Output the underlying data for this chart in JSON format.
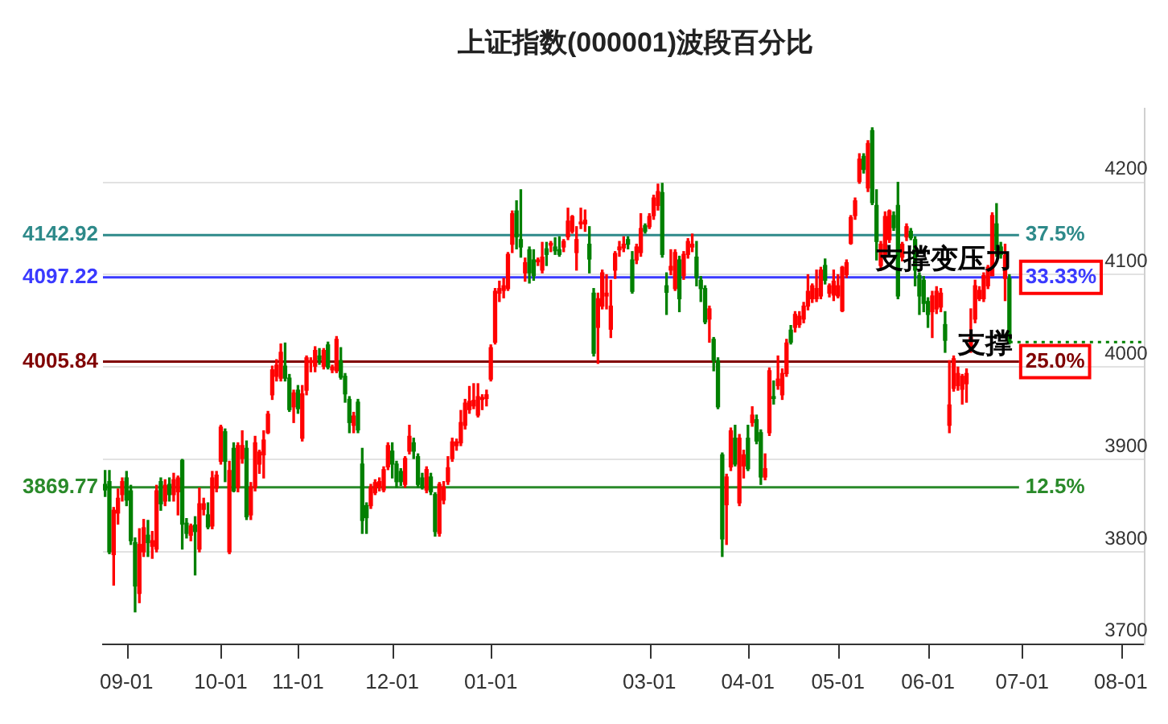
{
  "chart_data": {
    "type": "candlestick",
    "title": "上证指数(000001)波段百分比",
    "categories": [
      null,
      null,
      null,
      null,
      null,
      "09-01",
      null,
      null,
      null,
      null,
      null,
      null,
      null,
      null,
      null,
      null,
      null,
      null,
      null,
      null,
      null,
      null,
      null,
      null,
      null,
      null,
      null,
      "10-01",
      null,
      null,
      null,
      null,
      null,
      null,
      null,
      null,
      null,
      null,
      null,
      null,
      null,
      null,
      null,
      null,
      null,
      "11-01",
      null,
      null,
      null,
      null,
      null,
      null,
      null,
      null,
      null,
      null,
      null,
      null,
      null,
      null,
      null,
      null,
      null,
      null,
      null,
      null,
      null,
      "12-01",
      null,
      null,
      null,
      null,
      null,
      null,
      null,
      null,
      null,
      null,
      null,
      null,
      null,
      null,
      null,
      null,
      null,
      null,
      null,
      null,
      null,
      null,
      "01-01",
      null,
      null,
      null,
      null,
      null,
      null,
      null,
      null,
      null,
      null,
      null,
      null,
      null,
      null,
      null,
      null,
      null,
      null,
      null,
      null,
      null,
      null,
      null,
      null,
      null,
      null,
      null,
      null,
      null,
      null,
      null,
      null,
      null,
      null,
      null,
      null,
      "03-01",
      null,
      null,
      null,
      null,
      null,
      null,
      null,
      null,
      null,
      null,
      null,
      null,
      null,
      null,
      null,
      null,
      null,
      null,
      null,
      null,
      null,
      null,
      "04-01",
      null,
      null,
      null,
      null,
      null,
      null,
      null,
      null,
      null,
      null,
      null,
      null,
      null,
      null,
      null,
      null,
      null,
      null,
      null,
      null,
      "05-01",
      null,
      null,
      null,
      null,
      null,
      null,
      null,
      null,
      null,
      null,
      null,
      null,
      null,
      null,
      null,
      null,
      null,
      null,
      null,
      null,
      "06-01",
      null,
      null,
      null,
      null,
      null,
      null,
      null,
      null,
      null,
      null,
      null,
      null,
      null,
      null,
      null,
      null,
      null,
      null,
      null,
      null,
      null,
      "07-01",
      null,
      null,
      null,
      null,
      null,
      null,
      null,
      null,
      null,
      null,
      null,
      null,
      null,
      null,
      null,
      null,
      null,
      null,
      null,
      null,
      null,
      null,
      "08-01",
      null,
      null,
      null,
      null,
      null
    ],
    "ohlc": [
      [
        3873,
        3888,
        3860,
        3867
      ],
      [
        3876,
        3888,
        3798,
        3800
      ],
      [
        3797,
        3848,
        3764,
        3845
      ],
      [
        3842,
        3868,
        3830,
        3858
      ],
      [
        3862,
        3880,
        3855,
        3876
      ],
      [
        3880,
        3887,
        3850,
        3856
      ],
      [
        3866,
        3872,
        3808,
        3812
      ],
      [
        3810,
        3815,
        3735,
        3763
      ],
      [
        3755,
        3825,
        3745,
        3808
      ],
      [
        3800,
        3835,
        3795,
        3826
      ],
      [
        3818,
        3834,
        3795,
        3810
      ],
      [
        3806,
        3822,
        3793,
        3812
      ],
      [
        3803,
        3872,
        3800,
        3866
      ],
      [
        3876,
        3880,
        3845,
        3852
      ],
      [
        3855,
        3878,
        3850,
        3872
      ],
      [
        3873,
        3880,
        3855,
        3862
      ],
      [
        3862,
        3885,
        3855,
        3878
      ],
      [
        3865,
        3882,
        3840,
        3880
      ],
      [
        3899,
        3900,
        3803,
        3830
      ],
      [
        3831,
        3836,
        3815,
        3820
      ],
      [
        3818,
        3830,
        3812,
        3828
      ],
      [
        3829,
        3838,
        3775,
        3822
      ],
      [
        3803,
        3869,
        3800,
        3852
      ],
      [
        3846,
        3858,
        3840,
        3852
      ],
      [
        3840,
        3853,
        3825,
        3827
      ],
      [
        3828,
        3887,
        3825,
        3880
      ],
      [
        3869,
        3887,
        3865,
        3883
      ],
      [
        3898,
        3937,
        3895,
        3935
      ],
      [
        3930,
        3933,
        3876,
        3898
      ],
      [
        3800,
        3898,
        3798,
        3888
      ],
      [
        3912,
        3918,
        3865,
        3866
      ],
      [
        3870,
        3918,
        3865,
        3915
      ],
      [
        3901,
        3931,
        3896,
        3915
      ],
      [
        3912,
        3920,
        3835,
        3838
      ],
      [
        3840,
        3875,
        3835,
        3870
      ],
      [
        3870,
        3925,
        3866,
        3918
      ],
      [
        3895,
        3910,
        3885,
        3908
      ],
      [
        3905,
        3931,
        3880,
        3921
      ],
      [
        3929,
        3952,
        3928,
        3949
      ],
      [
        3970,
        4001,
        3965,
        3997
      ],
      [
        3990,
        4008,
        3985,
        4002
      ],
      [
        3988,
        4025,
        3985,
        4016
      ],
      [
        4001,
        4026,
        3985,
        3988
      ],
      [
        3988,
        3992,
        3952,
        3954
      ],
      [
        3957,
        3975,
        3940,
        3972
      ],
      [
        3975,
        3980,
        3950,
        3955
      ],
      [
        3923,
        3980,
        3920,
        3971
      ],
      [
        3975,
        4012,
        3970,
        4010
      ],
      [
        4005,
        4010,
        3995,
        4007
      ],
      [
        4001,
        4022,
        3995,
        4018
      ],
      [
        4012,
        4020,
        4003,
        4008
      ],
      [
        4001,
        4020,
        3998,
        4018
      ],
      [
        4024,
        4027,
        3998,
        4000
      ],
      [
        3997,
        4002,
        3994,
        4000
      ],
      [
        3996,
        4033,
        3994,
        4030
      ],
      [
        4007,
        4021,
        3987,
        3989
      ],
      [
        3990,
        3993,
        3962,
        3971
      ],
      [
        3965,
        3968,
        3929,
        3940
      ],
      [
        3937,
        3951,
        3929,
        3947
      ],
      [
        3962,
        3965,
        3929,
        3932
      ],
      [
        3895,
        3912,
        3820,
        3834
      ],
      [
        3850,
        3853,
        3820,
        3837
      ],
      [
        3850,
        3873,
        3847,
        3870
      ],
      [
        3864,
        3878,
        3862,
        3875
      ],
      [
        3870,
        3880,
        3866,
        3876
      ],
      [
        3867,
        3892,
        3865,
        3889
      ],
      [
        3892,
        3918,
        3889,
        3915
      ],
      [
        3909,
        3918,
        3880,
        3895
      ],
      [
        3895,
        3898,
        3870,
        3876
      ],
      [
        3887,
        3890,
        3872,
        3876
      ],
      [
        3873,
        3903,
        3870,
        3901
      ],
      [
        3909,
        3937,
        3906,
        3925
      ],
      [
        3918,
        3923,
        3901,
        3909
      ],
      [
        3903,
        3906,
        3870,
        3873
      ],
      [
        3880,
        3885,
        3868,
        3870
      ],
      [
        3867,
        3892,
        3864,
        3889
      ],
      [
        3881,
        3885,
        3862,
        3865
      ],
      [
        3862,
        3864,
        3817,
        3822
      ],
      [
        3820,
        3875,
        3817,
        3873
      ],
      [
        3856,
        3876,
        3852,
        3870
      ],
      [
        3876,
        3903,
        3873,
        3891
      ],
      [
        3901,
        3923,
        3898,
        3919
      ],
      [
        3915,
        3922,
        3910,
        3919
      ],
      [
        3918,
        3953,
        3915,
        3940
      ],
      [
        3937,
        3965,
        3933,
        3961
      ],
      [
        3954,
        3979,
        3950,
        3963
      ],
      [
        3958,
        3982,
        3955,
        3964
      ],
      [
        3948,
        3982,
        3946,
        3968
      ],
      [
        3965,
        3970,
        3954,
        3967
      ],
      [
        3966,
        3975,
        3958,
        3970
      ],
      [
        3987,
        4024,
        3985,
        4021
      ],
      [
        4027,
        4085,
        4025,
        4082
      ],
      [
        4080,
        4093,
        4071,
        4085
      ],
      [
        4083,
        4096,
        4075,
        4088
      ],
      [
        4085,
        4124,
        4083,
        4122
      ],
      [
        4133,
        4169,
        4124,
        4166
      ],
      [
        4169,
        4180,
        4128,
        4141
      ],
      [
        4138,
        4192,
        4119,
        4130
      ],
      [
        4102,
        4118,
        4093,
        4113
      ],
      [
        4127,
        4130,
        4091,
        4102
      ],
      [
        4116,
        4127,
        4094,
        4099
      ],
      [
        4114,
        4118,
        4110,
        4116
      ],
      [
        4105,
        4135,
        4102,
        4119
      ],
      [
        4128,
        4135,
        4110,
        4122
      ],
      [
        4132,
        4136,
        4125,
        4134
      ],
      [
        4130,
        4140,
        4122,
        4126
      ],
      [
        4127,
        4141,
        4120,
        4122
      ],
      [
        4130,
        4138,
        4125,
        4136
      ],
      [
        4141,
        4172,
        4138,
        4158
      ],
      [
        4147,
        4164,
        4145,
        4163
      ],
      [
        4124,
        4152,
        4105,
        4138
      ],
      [
        4155,
        4172,
        4150,
        4157
      ],
      [
        4155,
        4170,
        4147,
        4159
      ],
      [
        4133,
        4152,
        4102,
        4117
      ],
      [
        4080,
        4085,
        4012,
        4015
      ],
      [
        4043,
        4080,
        4004,
        4074
      ],
      [
        4066,
        4105,
        4063,
        4102
      ],
      [
        4077,
        4100,
        4063,
        4080
      ],
      [
        4041,
        4094,
        4032,
        4066
      ],
      [
        4105,
        4125,
        4096,
        4123
      ],
      [
        4127,
        4136,
        4120,
        4130
      ],
      [
        4129,
        4141,
        4125,
        4133
      ],
      [
        4138,
        4141,
        4128,
        4133
      ],
      [
        4116,
        4125,
        4080,
        4082
      ],
      [
        4116,
        4133,
        4112,
        4130
      ],
      [
        4124,
        4166,
        4120,
        4150
      ],
      [
        4153,
        4155,
        4145,
        4147
      ],
      [
        4152,
        4166,
        4150,
        4163
      ],
      [
        4164,
        4186,
        4160,
        4183
      ],
      [
        4175,
        4198,
        4170,
        4190
      ],
      [
        4189,
        4199,
        4119,
        4122
      ],
      [
        4088,
        4102,
        4057,
        4081
      ],
      [
        4105,
        4127,
        4100,
        4109
      ],
      [
        4085,
        4127,
        4083,
        4124
      ],
      [
        4116,
        4120,
        4060,
        4074
      ],
      [
        4099,
        4125,
        4095,
        4122
      ],
      [
        4122,
        4139,
        4118,
        4136
      ],
      [
        4130,
        4144,
        4125,
        4133
      ],
      [
        4119,
        4136,
        4088,
        4097
      ],
      [
        4094,
        4098,
        4071,
        4085
      ],
      [
        4085,
        4088,
        4047,
        4049
      ],
      [
        4052,
        4066,
        4027,
        4063
      ],
      [
        4030,
        4032,
        3996,
        4007
      ],
      [
        4007,
        4010,
        3955,
        3957
      ],
      [
        3905,
        3907,
        3795,
        3814
      ],
      [
        3851,
        3884,
        3808,
        3881
      ],
      [
        3892,
        3934,
        3888,
        3931
      ],
      [
        3923,
        3937,
        3893,
        3895
      ],
      [
        3853,
        3927,
        3850,
        3923
      ],
      [
        3893,
        3910,
        3880,
        3905
      ],
      [
        3923,
        3937,
        3888,
        3890
      ],
      [
        3940,
        3957,
        3936,
        3948
      ],
      [
        3943,
        3948,
        3917,
        3920
      ],
      [
        3929,
        3932,
        3873,
        3881
      ],
      [
        3881,
        3906,
        3878,
        3890
      ],
      [
        3929,
        3999,
        3926,
        3996
      ],
      [
        3968,
        3985,
        3960,
        3966
      ],
      [
        3980,
        4012,
        3976,
        3987
      ],
      [
        3970,
        3998,
        3965,
        3993
      ],
      [
        3993,
        4030,
        3990,
        4026
      ],
      [
        4040,
        4045,
        4025,
        4027
      ],
      [
        4043,
        4060,
        4038,
        4057
      ],
      [
        4046,
        4060,
        4043,
        4055
      ],
      [
        4052,
        4070,
        4048,
        4066
      ],
      [
        4066,
        4100,
        4062,
        4082
      ],
      [
        4074,
        4090,
        4070,
        4088
      ],
      [
        4074,
        4105,
        4071,
        4085
      ],
      [
        4077,
        4108,
        4074,
        4105
      ],
      [
        4110,
        4117,
        4090,
        4094
      ],
      [
        4080,
        4090,
        4076,
        4088
      ],
      [
        4078,
        4105,
        4072,
        4093
      ],
      [
        4077,
        4100,
        4075,
        4088
      ],
      [
        4061,
        4109,
        4060,
        4108
      ],
      [
        4100,
        4116,
        4097,
        4113
      ],
      [
        4134,
        4164,
        4133,
        4162
      ],
      [
        4164,
        4183,
        4160,
        4180
      ],
      [
        4201,
        4231,
        4199,
        4225
      ],
      [
        4228,
        4231,
        4210,
        4214
      ],
      [
        4194,
        4245,
        4190,
        4242
      ],
      [
        4256,
        4259,
        4176,
        4178
      ],
      [
        4175,
        4192,
        4116,
        4136
      ],
      [
        4110,
        4136,
        4105,
        4133
      ],
      [
        4122,
        4168,
        4118,
        4163
      ],
      [
        4138,
        4170,
        4135,
        4169
      ],
      [
        4164,
        4168,
        4148,
        4151
      ],
      [
        4175,
        4200,
        4074,
        4077
      ],
      [
        4119,
        4135,
        4115,
        4133
      ],
      [
        4141,
        4155,
        4137,
        4152
      ],
      [
        4147,
        4150,
        4138,
        4140
      ],
      [
        4138,
        4141,
        4088,
        4105
      ],
      [
        4099,
        4102,
        4057,
        4077
      ],
      [
        4094,
        4098,
        4060,
        4069
      ],
      [
        4071,
        4075,
        4043,
        4057
      ],
      [
        4060,
        4082,
        4032,
        4077
      ],
      [
        4063,
        4087,
        4058,
        4082
      ],
      [
        4065,
        4085,
        4060,
        4080
      ],
      [
        4046,
        4060,
        4016,
        4029
      ],
      [
        3937,
        4007,
        3929,
        3959
      ],
      [
        3977,
        4012,
        3974,
        4009
      ],
      [
        3980,
        4000,
        3975,
        3993
      ],
      [
        3976,
        3992,
        3960,
        3990
      ],
      [
        3982,
        3998,
        3962,
        3993
      ],
      [
        4018,
        4063,
        4016,
        4032
      ],
      [
        4052,
        4094,
        4048,
        4088
      ],
      [
        4074,
        4087,
        4072,
        4083
      ],
      [
        4074,
        4102,
        4071,
        4099
      ],
      [
        4088,
        4110,
        4085,
        4108
      ],
      [
        4099,
        4167,
        4099,
        4164
      ],
      [
        4155,
        4177,
        4120,
        4127
      ],
      [
        4130,
        4135,
        4118,
        4122
      ],
      [
        4096,
        4133,
        4072,
        4121
      ],
      [
        4096,
        4100,
        4025,
        4027
      ],
      null,
      null,
      null,
      null,
      null,
      null,
      null,
      null,
      null,
      null,
      null,
      null,
      null,
      null,
      null,
      null,
      null,
      null,
      null,
      null,
      null,
      null,
      null,
      null,
      null,
      null,
      null,
      null,
      null,
      null,
      null
    ],
    "colors": [
      "#008000",
      "#008000",
      "#ff0000",
      "#ff0000",
      "#ff0000",
      "#008000",
      "#008000",
      "#008000",
      "#ff0000",
      "#ff0000",
      "#008000",
      "#ff0000",
      "#ff0000",
      "#008000",
      "#ff0000",
      "#008000",
      "#ff0000",
      "#ff0000",
      "#008000",
      "#008000",
      "#ff0000",
      "#008000",
      "#ff0000",
      "#ff0000",
      "#008000",
      "#ff0000",
      "#ff0000",
      "#ff0000",
      "#008000",
      "#ff0000",
      "#008000",
      "#ff0000",
      "#ff0000",
      "#008000",
      "#ff0000",
      "#ff0000",
      "#ff0000",
      "#ff0000",
      "#ff0000",
      "#ff0000",
      "#ff0000",
      "#ff0000",
      "#008000",
      "#008000",
      "#ff0000",
      "#008000",
      "#ff0000",
      "#ff0000",
      "#ff0000",
      "#ff0000",
      "#008000",
      "#ff0000",
      "#008000",
      "#ff0000",
      "#ff0000",
      "#008000",
      "#008000",
      "#008000",
      "#ff0000",
      "#008000",
      "#008000",
      "#008000",
      "#ff0000",
      "#ff0000",
      "#ff0000",
      "#ff0000",
      "#ff0000",
      "#008000",
      "#008000",
      "#008000",
      "#ff0000",
      "#ff0000",
      "#008000",
      "#008000",
      "#008000",
      "#ff0000",
      "#008000",
      "#008000",
      "#ff0000",
      "#ff0000",
      "#ff0000",
      "#ff0000",
      "#ff0000",
      "#ff0000",
      "#ff0000",
      "#ff0000",
      "#ff0000",
      "#ff0000",
      "#ff0000",
      "#ff0000",
      "#ff0000",
      "#ff0000",
      "#ff0000",
      "#ff0000",
      "#ff0000",
      "#ff0000",
      "#008000",
      "#008000",
      "#ff0000",
      "#008000",
      "#008000",
      "#ff0000",
      "#ff0000",
      "#008000",
      "#ff0000",
      "#008000",
      "#008000",
      "#ff0000",
      "#ff0000",
      "#ff0000",
      "#ff0000",
      "#ff0000",
      "#ff0000",
      "#008000",
      "#008000",
      "#ff0000",
      "#ff0000",
      "#ff0000",
      "#ff0000",
      "#ff0000",
      "#ff0000",
      "#ff0000",
      "#008000",
      "#008000",
      "#ff0000",
      "#ff0000",
      "#008000",
      "#ff0000",
      "#ff0000",
      "#ff0000",
      "#008000",
      "#008000",
      "#ff0000",
      "#ff0000",
      "#008000",
      "#ff0000",
      "#ff0000",
      "#ff0000",
      "#008000",
      "#008000",
      "#008000",
      "#ff0000",
      "#008000",
      "#008000",
      "#008000",
      "#ff0000",
      "#ff0000",
      "#008000",
      "#ff0000",
      "#ff0000",
      "#008000",
      "#ff0000",
      "#008000",
      "#008000",
      "#ff0000",
      "#ff0000",
      "#008000",
      "#ff0000",
      "#ff0000",
      "#ff0000",
      "#008000",
      "#ff0000",
      "#ff0000",
      "#ff0000",
      "#ff0000",
      "#ff0000",
      "#ff0000",
      "#ff0000",
      "#008000",
      "#ff0000",
      "#ff0000",
      "#ff0000",
      "#ff0000",
      "#ff0000",
      "#ff0000",
      "#ff0000",
      "#ff0000",
      "#008000",
      "#ff0000",
      "#008000",
      "#008000",
      "#ff0000",
      "#ff0000",
      "#ff0000",
      "#008000",
      "#008000",
      "#ff0000",
      "#ff0000",
      "#008000",
      "#008000",
      "#008000",
      "#008000",
      "#008000",
      "#ff0000",
      "#ff0000",
      "#ff0000",
      "#008000",
      "#ff0000",
      "#ff0000",
      "#ff0000",
      "#ff0000",
      "#ff0000",
      "#ff0000",
      "#ff0000",
      "#ff0000",
      "#ff0000",
      "#ff0000",
      "#ff0000",
      "#008000",
      "#008000",
      "#ff0000",
      "#008000",
      null,
      null,
      null,
      null,
      null,
      null,
      null,
      null,
      null,
      null,
      null,
      null,
      null,
      null,
      null,
      null,
      null,
      null,
      null,
      null,
      null,
      null,
      null,
      null,
      null,
      null,
      null,
      null,
      null,
      null,
      null
    ],
    "ylim": [
      3700,
      4280
    ],
    "yticks": [
      3700,
      3800,
      3900,
      4000,
      4100,
      4200
    ],
    "grid": "y",
    "ref_lines": [
      {
        "axis": "y",
        "value": 4142.92,
        "label": "4142.92",
        "color": "#2e8a8a"
      },
      {
        "axis": "y",
        "value": 4097.22,
        "label": "4097.22",
        "color": "#3a3aff"
      },
      {
        "axis": "y",
        "value": 4005.84,
        "label": "4005.84",
        "color": "#800000"
      },
      {
        "axis": "y",
        "value": 3869.77,
        "label": "3869.77",
        "color": "#2a8a2a"
      },
      {
        "axis": "y",
        "value": 4027,
        "color": "#008000",
        "line_style": "dotted"
      }
    ],
    "annotations": [
      "37.5%",
      "33.33%",
      "25.0%",
      "12.5%",
      {
        "text": "支撑变压力",
        "y": 4097.22
      },
      {
        "text": "支撑",
        "y": 4005.84
      }
    ]
  }
}
